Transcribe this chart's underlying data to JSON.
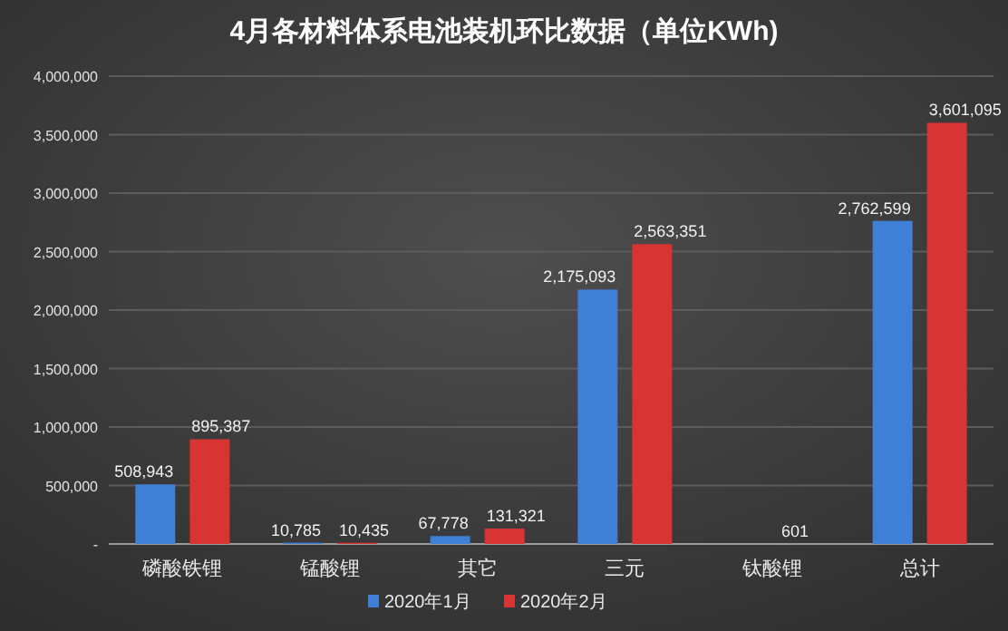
{
  "chart_data": {
    "type": "bar",
    "title": "4月各材料体系电池装机环比数据（单位KWh)",
    "categories": [
      "磷酸铁锂",
      "锰酸锂",
      "其它",
      "三元",
      "钛酸锂",
      "总计"
    ],
    "series": [
      {
        "name": "2020年1月",
        "color": "#3f7fd6",
        "values": [
          508943,
          10785,
          67778,
          2175093,
          null,
          2762599
        ],
        "value_labels": [
          "508,943",
          "10,785",
          "67,778",
          "2,175,093",
          null,
          "2,762,599"
        ]
      },
      {
        "name": "2020年2月",
        "color": "#d93434",
        "values": [
          895387,
          10435,
          131321,
          2563351,
          601,
          3601095
        ],
        "value_labels": [
          "895,387",
          "10,435",
          "131,321",
          "2,563,351",
          "601",
          "3,601,095"
        ]
      }
    ],
    "ylim": [
      0,
      4000000
    ],
    "yticks": [
      {
        "value": 0,
        "label": "-"
      },
      {
        "value": 500000,
        "label": "500,000"
      },
      {
        "value": 1000000,
        "label": "1,000,000"
      },
      {
        "value": 1500000,
        "label": "1,500,000"
      },
      {
        "value": 2000000,
        "label": "2,000,000"
      },
      {
        "value": 2500000,
        "label": "2,500,000"
      },
      {
        "value": 3000000,
        "label": "3,000,000"
      },
      {
        "value": 3500000,
        "label": "3,500,000"
      },
      {
        "value": 4000000,
        "label": "4,000,000"
      }
    ],
    "grid": "y",
    "legend": "bottom"
  }
}
